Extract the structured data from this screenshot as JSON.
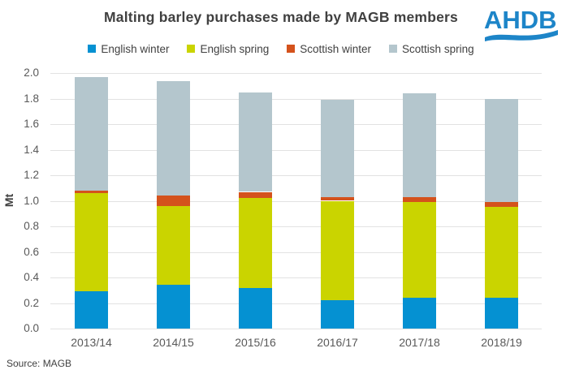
{
  "title": "Malting barley purchases made by MAGB members",
  "logo_text": "AHDB",
  "source": "Source: MAGB",
  "colors": {
    "english_winter": "#0591d2",
    "english_spring": "#cad400",
    "scottish_winter": "#d4521c",
    "scottish_spring": "#b4c6cd",
    "title_text": "#404040",
    "axis_text": "#595959",
    "gridline": "#e2e2e2",
    "logo_blue": "#1d85c8"
  },
  "chart_data": {
    "type": "bar",
    "stacked": true,
    "title": "Malting barley purchases made by MAGB members",
    "xlabel": "",
    "ylabel": "Mt",
    "ylim": [
      0,
      2.0
    ],
    "ytick_step": 0.2,
    "grid": true,
    "legend_position": "top",
    "categories": [
      "2013/14",
      "2014/15",
      "2015/16",
      "2016/17",
      "2017/18",
      "2018/19"
    ],
    "series": [
      {
        "name": "English winter",
        "color": "#0591d2",
        "values": [
          0.29,
          0.34,
          0.32,
          0.22,
          0.24,
          0.24
        ]
      },
      {
        "name": "English spring",
        "color": "#cad400",
        "values": [
          0.77,
          0.62,
          0.7,
          0.78,
          0.75,
          0.71
        ]
      },
      {
        "name": "Scottish winter",
        "color": "#d4521c",
        "values": [
          0.02,
          0.08,
          0.05,
          0.03,
          0.04,
          0.04
        ]
      },
      {
        "name": "Scottish spring",
        "color": "#b4c6cd",
        "values": [
          0.89,
          0.9,
          0.78,
          0.76,
          0.81,
          0.81
        ]
      }
    ],
    "totals": [
      1.97,
      1.94,
      1.85,
      1.79,
      1.84,
      1.8
    ]
  }
}
